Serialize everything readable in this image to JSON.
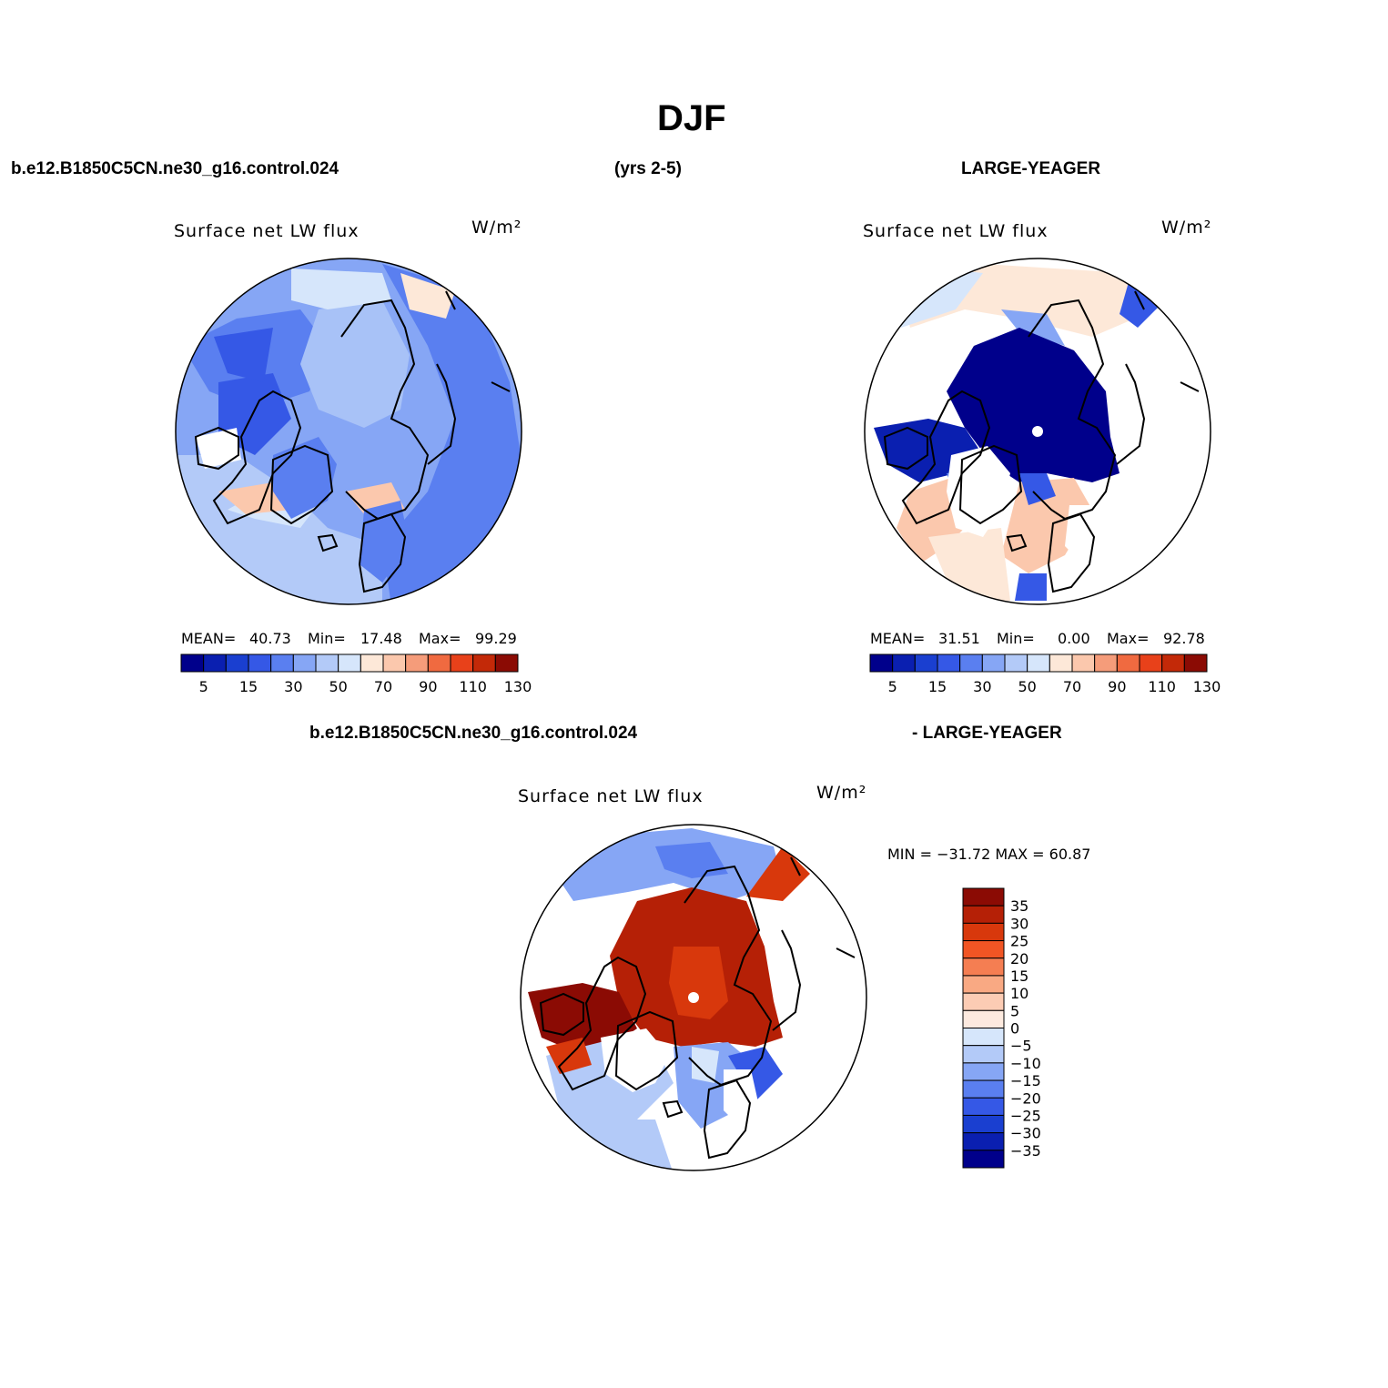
{
  "title": "DJF",
  "header": {
    "case_name": "b.e12.B1850C5CN.ne30_g16.control.024",
    "years": "(yrs 2-5)",
    "obs_name": "LARGE-YEAGER",
    "diff_case": "b.e12.B1850C5CN.ne30_g16.control.024",
    "diff_obs": "- LARGE-YEAGER"
  },
  "panels": [
    {
      "variable": "Surface net LW flux",
      "units": "W/m²",
      "stats": {
        "mean_label": "MEAN=",
        "mean": "40.73",
        "min_label": "Min=",
        "min": "17.48",
        "max_label": "Max=",
        "max": "99.29"
      }
    },
    {
      "variable": "Surface net LW flux",
      "units": "W/m²",
      "stats": {
        "mean_label": "MEAN=",
        "mean": "31.51",
        "min_label": "Min=",
        "min": "0.00",
        "max_label": "Max=",
        "max": "92.78"
      }
    },
    {
      "variable": "Surface net LW flux",
      "units": "W/m²",
      "stats_text": "MIN = −31.72 MAX =  60.87"
    }
  ],
  "colorbar_main": {
    "colors": [
      "#00008b",
      "#0a1fb0",
      "#1a3fd0",
      "#3558e6",
      "#5a7ff0",
      "#86a6f5",
      "#b3caf8",
      "#d6e6fb",
      "#fde8d8",
      "#fbc8ad",
      "#f59c7a",
      "#f06a40",
      "#e8411a",
      "#c32908",
      "#8b0b04"
    ],
    "tick_labels": [
      "5",
      "15",
      "30",
      "50",
      "70",
      "90",
      "110",
      "130"
    ]
  },
  "colorbar_diff": {
    "colors": [
      "#8b0b04",
      "#b52006",
      "#d8380c",
      "#f15524",
      "#f57e52",
      "#f9a983",
      "#fcccb4",
      "#fdeadf",
      "#d6e6fb",
      "#b3caf8",
      "#86a6f5",
      "#5a7ff0",
      "#3558e6",
      "#1a3fd0",
      "#0a1fb0",
      "#00008b"
    ],
    "tick_labels": [
      "35",
      "30",
      "25",
      "20",
      "15",
      "10",
      "5",
      "0",
      "−5",
      "−10",
      "−15",
      "−20",
      "−25",
      "−30",
      "−35"
    ]
  }
}
